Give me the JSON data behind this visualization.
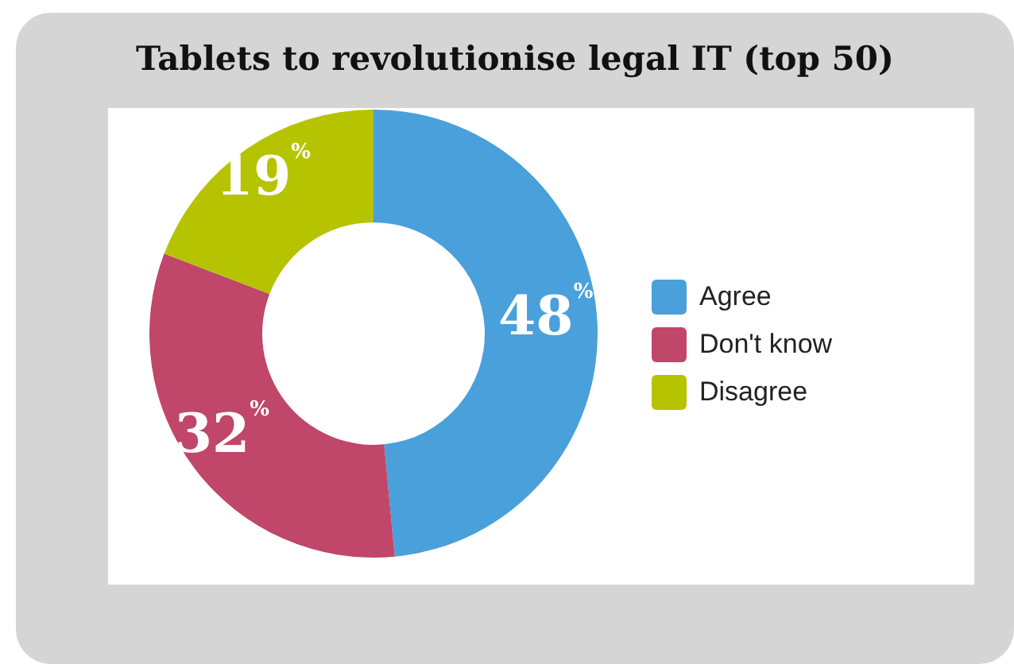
{
  "chart_data": {
    "type": "donut",
    "title": "Tablets to revolutionise legal IT (top 50)",
    "categories": [
      "Agree",
      "Don't know",
      "Disagree"
    ],
    "values": [
      48,
      32,
      19
    ],
    "colors": [
      "#4aa0da",
      "#c0466a",
      "#b6c300"
    ],
    "value_labels": [
      "48$^{%}$",
      "32$^{%}$",
      "19$^{%}$"
    ],
    "legend": "right"
  }
}
